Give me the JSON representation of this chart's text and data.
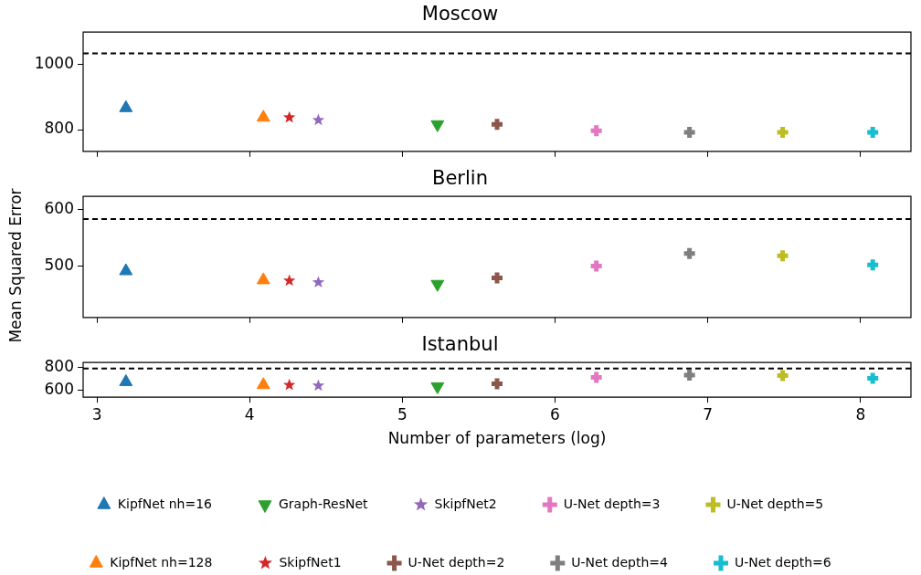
{
  "chart_data": [
    {
      "type": "scatter",
      "title": "Moscow",
      "xlim": [
        2.91,
        8.33
      ],
      "xticks": [
        3,
        4,
        5,
        6,
        7,
        8
      ],
      "ylim": [
        734,
        1097
      ],
      "yticks": [
        800,
        1000
      ],
      "tick_labels": "y",
      "grid": false,
      "legend": false,
      "ref_lines": [
        {
          "axis": "y",
          "value": 1032,
          "color": "#000000",
          "line_style": "dashed"
        }
      ],
      "series": [
        {
          "color": "#1f77b4",
          "marker": "triangle",
          "x": [
            3.19
          ],
          "values": [
            866
          ]
        },
        {
          "color": "#ff7f0e",
          "marker": "triangle",
          "x": [
            4.09
          ],
          "values": [
            837
          ]
        },
        {
          "color": "#2ca02c",
          "marker": "triangle-down",
          "x": [
            5.23
          ],
          "values": [
            816
          ]
        },
        {
          "color": "#d62728",
          "marker": "star",
          "x": [
            4.26
          ],
          "values": [
            837
          ]
        },
        {
          "color": "#9467bd",
          "marker": "star",
          "x": [
            4.45
          ],
          "values": [
            829
          ]
        },
        {
          "color": "#8c564b",
          "marker": "cross",
          "x": [
            5.62
          ],
          "values": [
            816
          ]
        },
        {
          "color": "#e377c2",
          "marker": "cross",
          "x": [
            6.27
          ],
          "values": [
            797
          ]
        },
        {
          "color": "#7f7f7f",
          "marker": "cross",
          "x": [
            6.88
          ],
          "values": [
            792
          ]
        },
        {
          "color": "#bcbd22",
          "marker": "cross",
          "x": [
            7.49
          ],
          "values": [
            792
          ]
        },
        {
          "color": "#17becf",
          "marker": "cross",
          "x": [
            8.08
          ],
          "values": [
            792
          ]
        }
      ]
    },
    {
      "type": "scatter",
      "title": "Berlin",
      "ylabel": "Mean Squared Error",
      "xlim": [
        2.91,
        8.33
      ],
      "xticks": [
        3,
        4,
        5,
        6,
        7,
        8
      ],
      "ylim": [
        409,
        623
      ],
      "yticks": [
        500,
        600
      ],
      "tick_labels": "y",
      "grid": false,
      "legend": false,
      "ref_lines": [
        {
          "axis": "y",
          "value": 583,
          "color": "#000000",
          "line_style": "dashed"
        }
      ],
      "series": [
        {
          "color": "#1f77b4",
          "marker": "triangle",
          "x": [
            3.19
          ],
          "values": [
            491
          ]
        },
        {
          "color": "#ff7f0e",
          "marker": "triangle",
          "x": [
            4.09
          ],
          "values": [
            475
          ]
        },
        {
          "color": "#2ca02c",
          "marker": "triangle-down",
          "x": [
            5.23
          ],
          "values": [
            468
          ]
        },
        {
          "color": "#d62728",
          "marker": "star",
          "x": [
            4.26
          ],
          "values": [
            474
          ]
        },
        {
          "color": "#9467bd",
          "marker": "star",
          "x": [
            4.45
          ],
          "values": [
            471
          ]
        },
        {
          "color": "#8c564b",
          "marker": "cross",
          "x": [
            5.62
          ],
          "values": [
            479
          ]
        },
        {
          "color": "#e377c2",
          "marker": "cross",
          "x": [
            6.27
          ],
          "values": [
            500
          ]
        },
        {
          "color": "#7f7f7f",
          "marker": "cross",
          "x": [
            6.88
          ],
          "values": [
            522
          ]
        },
        {
          "color": "#bcbd22",
          "marker": "cross",
          "x": [
            7.49
          ],
          "values": [
            518
          ]
        },
        {
          "color": "#17becf",
          "marker": "cross",
          "x": [
            8.08
          ],
          "values": [
            502
          ]
        }
      ]
    },
    {
      "type": "scatter",
      "title": "Istanbul",
      "xlabel": "Number of parameters (log)",
      "xlim": [
        2.91,
        8.33
      ],
      "xticks": [
        3,
        4,
        5,
        6,
        7,
        8
      ],
      "ylim": [
        538,
        844
      ],
      "yticks": [
        600,
        800
      ],
      "grid": false,
      "legend": "bottom",
      "ref_lines": [
        {
          "axis": "y",
          "value": 791,
          "color": "#000000",
          "line_style": "dashed"
        }
      ],
      "series": [
        {
          "name": "KipfNet nh=16",
          "color": "#1f77b4",
          "marker": "triangle",
          "x": [
            3.19
          ],
          "values": [
            673
          ]
        },
        {
          "name": "KipfNet nh=128",
          "color": "#ff7f0e",
          "marker": "triangle",
          "x": [
            4.09
          ],
          "values": [
            646
          ]
        },
        {
          "name": "Graph-ResNet",
          "color": "#2ca02c",
          "marker": "triangle-down",
          "x": [
            5.23
          ],
          "values": [
            633
          ]
        },
        {
          "name": "SkipfNet1",
          "color": "#d62728",
          "marker": "star",
          "x": [
            4.26
          ],
          "values": [
            646
          ]
        },
        {
          "name": "SkipfNet2",
          "color": "#9467bd",
          "marker": "star",
          "x": [
            4.45
          ],
          "values": [
            640
          ]
        },
        {
          "name": "U-Net depth=2",
          "color": "#8c564b",
          "marker": "cross",
          "x": [
            5.62
          ],
          "values": [
            656
          ]
        },
        {
          "name": "U-Net depth=3",
          "color": "#e377c2",
          "marker": "cross",
          "x": [
            6.27
          ],
          "values": [
            713
          ]
        },
        {
          "name": "U-Net depth=4",
          "color": "#7f7f7f",
          "marker": "cross",
          "x": [
            6.88
          ],
          "values": [
            733
          ]
        },
        {
          "name": "U-Net depth=5",
          "color": "#bcbd22",
          "marker": "cross",
          "x": [
            7.49
          ],
          "values": [
            729
          ]
        },
        {
          "name": "U-Net depth=6",
          "color": "#17becf",
          "marker": "cross",
          "x": [
            8.08
          ],
          "values": [
            704
          ]
        }
      ]
    }
  ]
}
